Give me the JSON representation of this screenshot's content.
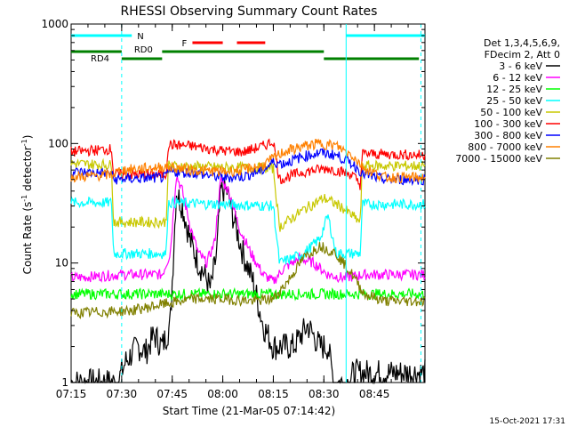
{
  "chart_data": {
    "type": "line",
    "title": "RHESSI Observing Summary Count Rates",
    "xlabel": "Start Time (21-Mar-05 07:14:42)",
    "ylabel_main": "Count Rate (s",
    "ylabel_exp1": "-1",
    "ylabel_mid": " detector",
    "ylabel_exp2": "-1",
    "ylabel_end": ")",
    "y_scale": "log",
    "ylim": [
      1,
      1000
    ],
    "xlim_minutes": [
      7.25,
      9.0
    ],
    "x_ticks": [
      {
        "t": 7.25,
        "label": "07:15"
      },
      {
        "t": 7.5,
        "label": "07:30"
      },
      {
        "t": 7.75,
        "label": "07:45"
      },
      {
        "t": 8.0,
        "label": "08:00"
      },
      {
        "t": 8.25,
        "label": "08:15"
      },
      {
        "t": 8.5,
        "label": "08:30"
      },
      {
        "t": 8.75,
        "label": "08:45"
      }
    ],
    "y_ticks": [
      {
        "v": 1,
        "label": "1"
      },
      {
        "v": 10,
        "label": "10"
      },
      {
        "v": 100,
        "label": "100"
      },
      {
        "v": 1000,
        "label": "1000"
      }
    ],
    "legend_header": [
      "Det 1,3,4,5,6,9,",
      "FDecim 2, Att 0"
    ],
    "legend_placement": "right",
    "series": [
      {
        "name": "3 - 6 keV",
        "color": "#000000",
        "points": [
          [
            7.25,
            1
          ],
          [
            7.48,
            1
          ],
          [
            7.52,
            1.5
          ],
          [
            7.58,
            2
          ],
          [
            7.62,
            1.8
          ],
          [
            7.66,
            2.5
          ],
          [
            7.7,
            2
          ],
          [
            7.74,
            3
          ],
          [
            7.77,
            40
          ],
          [
            7.8,
            30
          ],
          [
            7.84,
            15
          ],
          [
            7.88,
            10
          ],
          [
            7.91,
            8
          ],
          [
            7.94,
            6
          ],
          [
            7.97,
            12
          ],
          [
            7.99,
            40
          ],
          [
            8.02,
            40
          ],
          [
            8.05,
            25
          ],
          [
            8.1,
            12
          ],
          [
            8.15,
            7
          ],
          [
            8.2,
            3
          ],
          [
            8.25,
            2
          ],
          [
            8.35,
            2
          ],
          [
            8.42,
            3
          ],
          [
            8.48,
            2
          ],
          [
            8.52,
            2
          ],
          [
            8.55,
            1
          ],
          [
            8.62,
            1
          ],
          [
            8.65,
            1.2
          ],
          [
            9.0,
            1.2
          ]
        ]
      },
      {
        "name": "6 - 12 keV",
        "color": "#ff00ff",
        "points": [
          [
            7.25,
            7.5
          ],
          [
            7.5,
            8
          ],
          [
            7.7,
            8
          ],
          [
            7.74,
            12
          ],
          [
            7.77,
            55
          ],
          [
            7.8,
            40
          ],
          [
            7.84,
            20
          ],
          [
            7.88,
            12
          ],
          [
            7.92,
            10
          ],
          [
            7.96,
            15
          ],
          [
            7.99,
            50
          ],
          [
            8.03,
            40
          ],
          [
            8.08,
            20
          ],
          [
            8.14,
            12
          ],
          [
            8.2,
            8
          ],
          [
            8.25,
            7
          ],
          [
            8.3,
            9
          ],
          [
            8.38,
            11
          ],
          [
            8.45,
            10
          ],
          [
            8.52,
            8
          ],
          [
            8.6,
            7.5
          ],
          [
            8.7,
            8
          ],
          [
            9.0,
            8
          ]
        ]
      },
      {
        "name": "12 - 25 keV",
        "color": "#00ff00",
        "points": [
          [
            7.25,
            5.5
          ],
          [
            9.0,
            5.5
          ]
        ]
      },
      {
        "name": "25 - 50 keV",
        "color": "#00ffff",
        "points": [
          [
            7.25,
            32
          ],
          [
            7.45,
            32
          ],
          [
            7.46,
            12
          ],
          [
            7.72,
            12
          ],
          [
            7.73,
            32
          ],
          [
            8.25,
            30
          ],
          [
            8.28,
            10
          ],
          [
            8.4,
            12
          ],
          [
            8.48,
            16
          ],
          [
            8.52,
            25
          ],
          [
            8.56,
            12
          ],
          [
            8.68,
            12
          ],
          [
            8.69,
            31
          ],
          [
            9.0,
            31
          ]
        ]
      },
      {
        "name": "50 - 100 keV",
        "color": "#c8c800",
        "points": [
          [
            7.25,
            68
          ],
          [
            7.45,
            66
          ],
          [
            7.46,
            22
          ],
          [
            7.72,
            22
          ],
          [
            7.73,
            65
          ],
          [
            8.0,
            63
          ],
          [
            8.25,
            62
          ],
          [
            8.28,
            20
          ],
          [
            8.4,
            28
          ],
          [
            8.5,
            35
          ],
          [
            8.58,
            30
          ],
          [
            8.68,
            22
          ],
          [
            8.69,
            65
          ],
          [
            9.0,
            65
          ]
        ]
      },
      {
        "name": "100 - 300 keV",
        "color": "#ff0000",
        "points": [
          [
            7.25,
            85
          ],
          [
            7.45,
            90
          ],
          [
            7.46,
            55
          ],
          [
            7.72,
            55
          ],
          [
            7.73,
            98
          ],
          [
            7.85,
            95
          ],
          [
            8.0,
            87
          ],
          [
            8.1,
            85
          ],
          [
            8.2,
            95
          ],
          [
            8.25,
            105
          ],
          [
            8.28,
            50
          ],
          [
            8.4,
            58
          ],
          [
            8.52,
            62
          ],
          [
            8.64,
            55
          ],
          [
            8.68,
            45
          ],
          [
            8.69,
            82
          ],
          [
            9.0,
            80
          ]
        ]
      },
      {
        "name": "300 - 800 keV",
        "color": "#0000ff",
        "points": [
          [
            7.25,
            58
          ],
          [
            7.45,
            56
          ],
          [
            7.46,
            50
          ],
          [
            7.72,
            52
          ],
          [
            7.73,
            58
          ],
          [
            7.85,
            57
          ],
          [
            8.0,
            52
          ],
          [
            8.1,
            53
          ],
          [
            8.2,
            60
          ],
          [
            8.25,
            70
          ],
          [
            8.3,
            68
          ],
          [
            8.4,
            78
          ],
          [
            8.48,
            84
          ],
          [
            8.56,
            80
          ],
          [
            8.64,
            68
          ],
          [
            8.7,
            55
          ],
          [
            8.8,
            50
          ],
          [
            9.0,
            50
          ]
        ]
      },
      {
        "name": "800 - 7000 keV",
        "color": "#ff8000",
        "points": [
          [
            7.25,
            52
          ],
          [
            7.45,
            55
          ],
          [
            7.5,
            60
          ],
          [
            7.62,
            62
          ],
          [
            7.72,
            64
          ],
          [
            7.85,
            60
          ],
          [
            8.0,
            58
          ],
          [
            8.1,
            60
          ],
          [
            8.2,
            66
          ],
          [
            8.25,
            75
          ],
          [
            8.3,
            85
          ],
          [
            8.4,
            95
          ],
          [
            8.48,
            100
          ],
          [
            8.56,
            96
          ],
          [
            8.64,
            80
          ],
          [
            8.7,
            62
          ],
          [
            8.8,
            52
          ],
          [
            9.0,
            52
          ]
        ]
      },
      {
        "name": "7000 - 15000 keV",
        "color": "#808000",
        "points": [
          [
            7.25,
            3.8
          ],
          [
            7.55,
            4
          ],
          [
            7.7,
            4.5
          ],
          [
            7.85,
            5
          ],
          [
            8.0,
            5
          ],
          [
            8.15,
            4.8
          ],
          [
            8.25,
            5
          ],
          [
            8.32,
            7
          ],
          [
            8.4,
            11
          ],
          [
            8.48,
            14
          ],
          [
            8.56,
            12
          ],
          [
            8.64,
            8
          ],
          [
            8.7,
            5.5
          ],
          [
            8.8,
            4.8
          ],
          [
            9.0,
            4.8
          ]
        ]
      }
    ],
    "flag_bars": [
      {
        "label": "N",
        "color": "#00ffff",
        "row": "top",
        "segments": [
          [
            7.25,
            7.55
          ],
          [
            8.61,
            9.0
          ]
        ]
      },
      {
        "label": "F",
        "color": "#ff0000",
        "row": "mid",
        "segments": [
          [
            7.85,
            8.0
          ],
          [
            8.07,
            8.21
          ]
        ]
      },
      {
        "label": "RD0",
        "color": "#008000",
        "row": "rd0",
        "segments": [
          [
            7.25,
            7.5
          ],
          [
            7.7,
            8.5
          ]
        ]
      },
      {
        "label": "RD4",
        "color": "#008000",
        "row": "rd4",
        "segments": [
          [
            7.5,
            7.7
          ],
          [
            8.5,
            8.97
          ]
        ]
      }
    ],
    "vlines": [
      {
        "t": 7.5,
        "color": "#00ffff",
        "dashed": true
      },
      {
        "t": 8.61,
        "color": "#00ffff",
        "dashed": false
      },
      {
        "t": 8.98,
        "color": "#00ffff",
        "dashed": true
      }
    ]
  },
  "footer_stamp": "15-Oct-2021 17:31"
}
